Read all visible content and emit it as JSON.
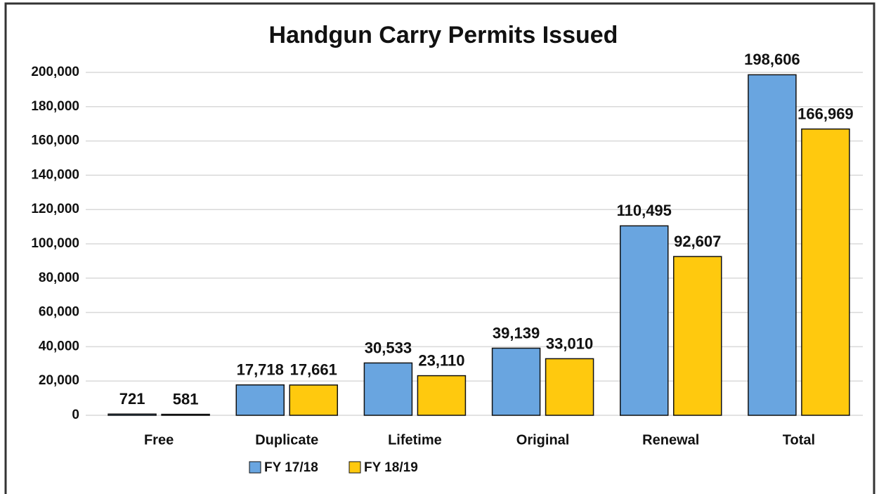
{
  "chart_data": {
    "type": "bar",
    "title": "Handgun Carry Permits Issued",
    "categories": [
      "Free",
      "Duplicate",
      "Lifetime",
      "Original",
      "Renewal",
      "Total"
    ],
    "series": [
      {
        "name": "FY 17/18",
        "color": "#69a5e0",
        "values": [
          721,
          17718,
          30533,
          39139,
          110495,
          198606
        ],
        "value_labels": [
          "721",
          "17,718",
          "30,533",
          "39,139",
          "110,495",
          "198,606"
        ]
      },
      {
        "name": "FY 18/19",
        "color": "#ffc90e",
        "values": [
          581,
          17661,
          23110,
          33010,
          92607,
          166969
        ],
        "value_labels": [
          "581",
          "17,661",
          "23,110",
          "33,010",
          "92,607",
          "166,969"
        ]
      }
    ],
    "ylim": [
      0,
      200000
    ],
    "yticks": [
      0,
      {
        "value": 20000,
        "label": "20,000"
      },
      {
        "value": 40000,
        "label": "40,000"
      },
      {
        "value": 60000,
        "label": "60,000"
      },
      {
        "value": 80000,
        "label": "80,000"
      },
      {
        "value": 100000,
        "label": "100,000"
      },
      {
        "value": 120000,
        "label": "120,000"
      },
      {
        "value": 140000,
        "label": "140,000"
      },
      {
        "value": 160000,
        "label": "160,000"
      },
      {
        "value": 180000,
        "label": "180,000"
      },
      {
        "value": 200000,
        "label": "200,000"
      }
    ],
    "grid": true,
    "legend": "bottom"
  }
}
